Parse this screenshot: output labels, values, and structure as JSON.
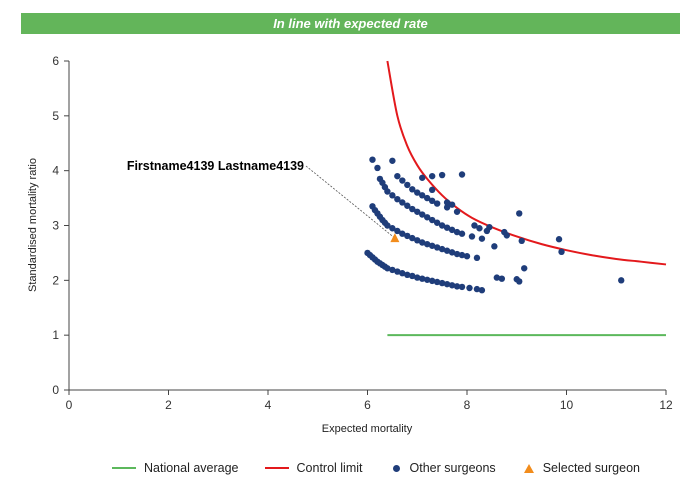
{
  "banner": {
    "text": "In line with expected rate",
    "color": "#63b55a"
  },
  "chart_data": {
    "type": "scatter",
    "xlabel": "Expected mortality",
    "ylabel": "Standardised mortality ratio",
    "xlim": [
      0,
      12
    ],
    "ylim": [
      0,
      6
    ],
    "xticks": [
      "0",
      "2",
      "4",
      "6",
      "8",
      "10",
      "12"
    ],
    "yticks": [
      "0",
      "1",
      "2",
      "3",
      "4",
      "5",
      "6"
    ],
    "grid": false,
    "legend_position": "bottom",
    "annotation": {
      "text": "Firstname4139 Lastname4139"
    },
    "colors": {
      "national_average": "#5cb85c",
      "control_limit": "#e3191c",
      "other_surgeons": "#1f3d7a",
      "selected_surgeon": "#f28c1c"
    },
    "series": [
      {
        "name": "National average",
        "type": "line",
        "x": [
          6.4,
          12
        ],
        "y": [
          1.0,
          1.0
        ]
      },
      {
        "name": "Control limit",
        "type": "line",
        "x": [
          6.4,
          6.6,
          6.8,
          7.0,
          7.2,
          7.5,
          7.8,
          8.1,
          8.5,
          9.0,
          9.5,
          10.0,
          10.5,
          11.0,
          11.5,
          12.0
        ],
        "y": [
          6.0,
          5.0,
          4.45,
          4.1,
          3.85,
          3.55,
          3.32,
          3.14,
          2.97,
          2.8,
          2.66,
          2.55,
          2.46,
          2.39,
          2.34,
          2.29
        ]
      },
      {
        "name": "Other surgeons",
        "type": "scatter",
        "points": [
          [
            6.0,
            2.5
          ],
          [
            6.05,
            2.46
          ],
          [
            6.1,
            2.42
          ],
          [
            6.15,
            2.38
          ],
          [
            6.2,
            2.34
          ],
          [
            6.25,
            2.31
          ],
          [
            6.3,
            2.28
          ],
          [
            6.35,
            2.25
          ],
          [
            6.4,
            2.22
          ],
          [
            6.5,
            2.19
          ],
          [
            6.6,
            2.16
          ],
          [
            6.7,
            2.13
          ],
          [
            6.8,
            2.1
          ],
          [
            6.9,
            2.08
          ],
          [
            7.0,
            2.05
          ],
          [
            7.1,
            2.03
          ],
          [
            7.2,
            2.01
          ],
          [
            7.3,
            1.99
          ],
          [
            7.4,
            1.97
          ],
          [
            7.5,
            1.95
          ],
          [
            7.6,
            1.93
          ],
          [
            7.7,
            1.91
          ],
          [
            7.8,
            1.89
          ],
          [
            7.9,
            1.88
          ],
          [
            8.05,
            1.86
          ],
          [
            8.2,
            1.84
          ],
          [
            8.3,
            1.82
          ],
          [
            6.1,
            3.35
          ],
          [
            6.15,
            3.28
          ],
          [
            6.2,
            3.22
          ],
          [
            6.25,
            3.16
          ],
          [
            6.3,
            3.1
          ],
          [
            6.35,
            3.05
          ],
          [
            6.4,
            3.0
          ],
          [
            6.5,
            2.95
          ],
          [
            6.6,
            2.9
          ],
          [
            6.7,
            2.85
          ],
          [
            6.8,
            2.81
          ],
          [
            6.9,
            2.77
          ],
          [
            7.0,
            2.73
          ],
          [
            7.1,
            2.69
          ],
          [
            7.2,
            2.66
          ],
          [
            7.3,
            2.63
          ],
          [
            7.4,
            2.6
          ],
          [
            7.5,
            2.57
          ],
          [
            7.6,
            2.54
          ],
          [
            7.7,
            2.51
          ],
          [
            7.8,
            2.48
          ],
          [
            7.9,
            2.46
          ],
          [
            8.0,
            2.44
          ],
          [
            8.2,
            2.41
          ],
          [
            6.25,
            3.85
          ],
          [
            6.3,
            3.78
          ],
          [
            6.35,
            3.7
          ],
          [
            6.4,
            3.62
          ],
          [
            6.5,
            3.55
          ],
          [
            6.6,
            3.48
          ],
          [
            6.7,
            3.42
          ],
          [
            6.8,
            3.36
          ],
          [
            6.9,
            3.3
          ],
          [
            7.0,
            3.25
          ],
          [
            7.1,
            3.2
          ],
          [
            7.2,
            3.15
          ],
          [
            7.3,
            3.1
          ],
          [
            7.4,
            3.05
          ],
          [
            7.5,
            3.0
          ],
          [
            7.6,
            2.96
          ],
          [
            7.7,
            2.92
          ],
          [
            7.8,
            2.88
          ],
          [
            7.9,
            2.85
          ],
          [
            8.1,
            2.8
          ],
          [
            8.3,
            2.76
          ],
          [
            6.6,
            3.9
          ],
          [
            6.7,
            3.82
          ],
          [
            6.8,
            3.74
          ],
          [
            6.9,
            3.66
          ],
          [
            7.0,
            3.6
          ],
          [
            7.1,
            3.55
          ],
          [
            7.2,
            3.5
          ],
          [
            7.3,
            3.45
          ],
          [
            7.4,
            3.4
          ],
          [
            7.6,
            3.33
          ],
          [
            7.8,
            3.25
          ],
          [
            6.1,
            4.2
          ],
          [
            6.2,
            4.05
          ],
          [
            6.5,
            4.18
          ],
          [
            7.1,
            3.87
          ],
          [
            7.3,
            3.9
          ],
          [
            7.5,
            3.92
          ],
          [
            7.9,
            3.93
          ],
          [
            7.3,
            3.65
          ],
          [
            7.6,
            3.42
          ],
          [
            7.7,
            3.38
          ],
          [
            8.15,
            3.0
          ],
          [
            8.25,
            2.95
          ],
          [
            8.4,
            2.9
          ],
          [
            8.45,
            2.97
          ],
          [
            8.55,
            2.62
          ],
          [
            8.6,
            2.05
          ],
          [
            8.7,
            2.03
          ],
          [
            8.75,
            2.88
          ],
          [
            8.8,
            2.82
          ],
          [
            9.0,
            2.02
          ],
          [
            9.05,
            1.98
          ],
          [
            9.05,
            3.22
          ],
          [
            9.1,
            2.72
          ],
          [
            9.15,
            2.22
          ],
          [
            9.85,
            2.75
          ],
          [
            9.9,
            2.52
          ],
          [
            11.1,
            2.0
          ]
        ]
      },
      {
        "name": "Selected surgeon",
        "type": "scatter",
        "marker": "triangle",
        "points": [
          [
            6.55,
            2.77
          ]
        ]
      }
    ]
  }
}
